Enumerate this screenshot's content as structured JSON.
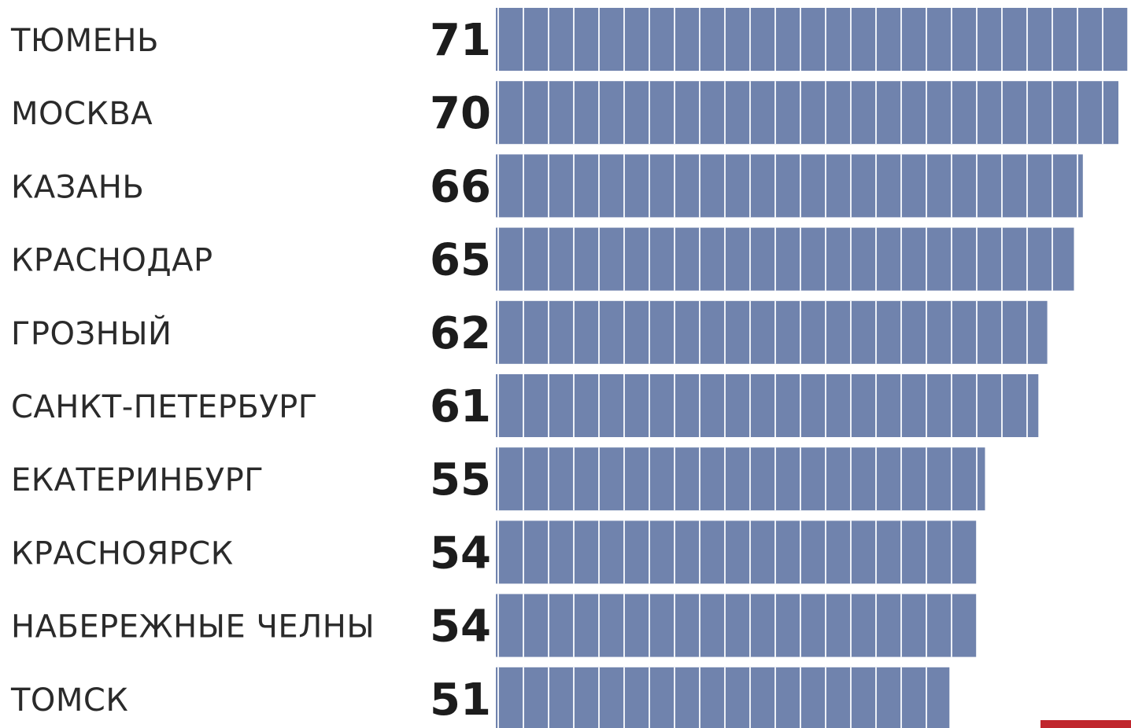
{
  "chart_data": {
    "type": "bar",
    "orientation": "horizontal",
    "categories": [
      "ТЮМЕНЬ",
      "МОСКВА",
      "КАЗАНЬ",
      "КРАСНОДАР",
      "ГРОЗНЫЙ",
      "САНКТ-ПЕТЕРБУРГ",
      "ЕКАТЕРИНБУРГ",
      "КРАСНОЯРСК",
      "НАБЕРЕЖНЫЕ ЧЕЛНЫ",
      "ТОМСК"
    ],
    "values": [
      71,
      70,
      66,
      65,
      62,
      61,
      55,
      54,
      54,
      51
    ],
    "title": "",
    "xlabel": "",
    "ylabel": "",
    "grid": false,
    "legend": "none",
    "colors": {
      "bar": "#7083ad",
      "segment_line": "#eef1f7",
      "text": "#1c1c1c",
      "accent_badge": "#c0262d"
    }
  }
}
